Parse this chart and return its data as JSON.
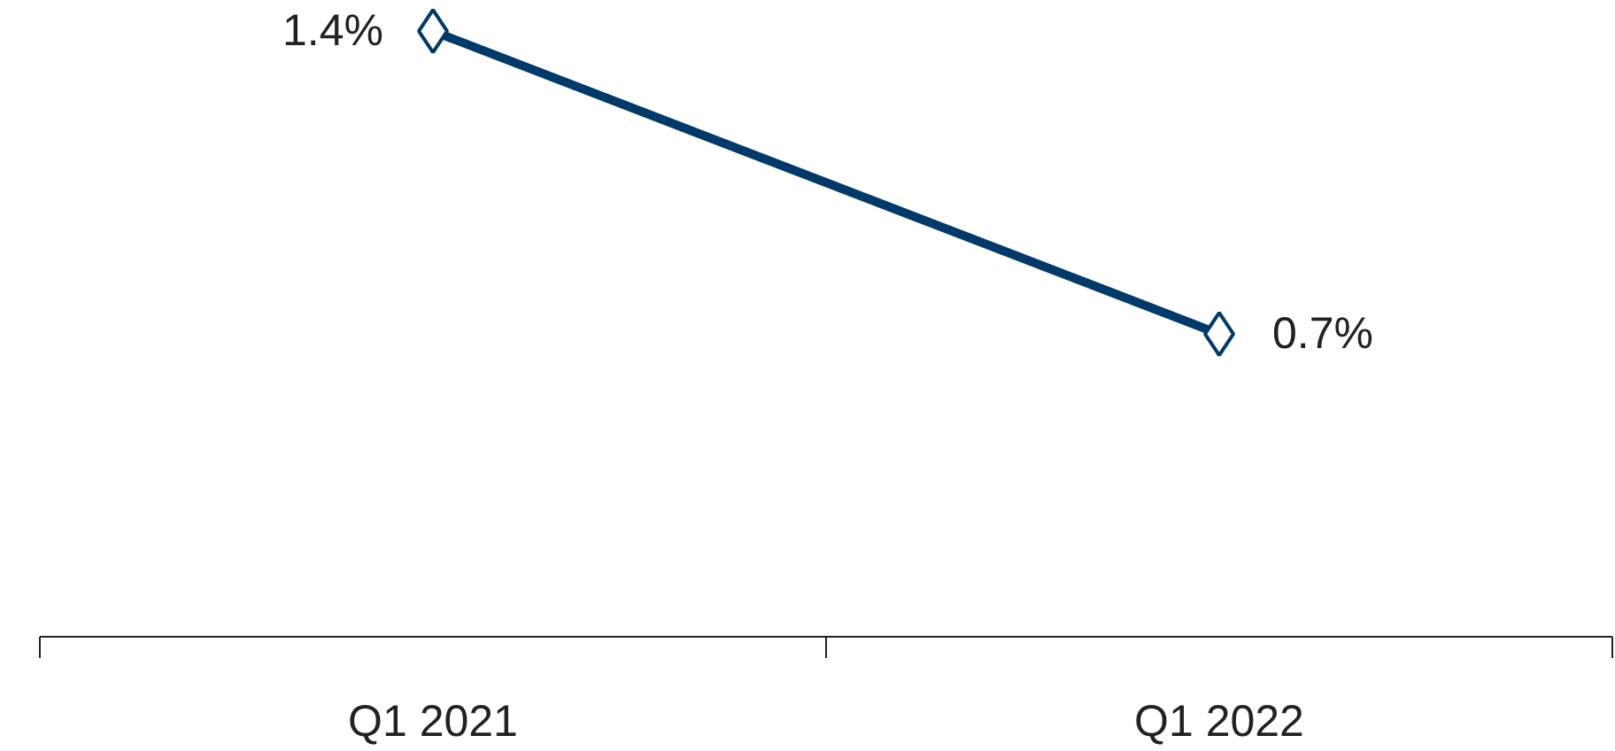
{
  "chart_data": {
    "type": "line",
    "categories": [
      "Q1 2021",
      "Q1 2022"
    ],
    "series": [
      {
        "color": "#003a6b",
        "values": [
          1.4,
          0.7
        ],
        "value_labels": [
          "1.4%",
          "0.7%"
        ]
      }
    ],
    "marker": "diamond",
    "line_style": "solid",
    "tick_labels": "x"
  }
}
